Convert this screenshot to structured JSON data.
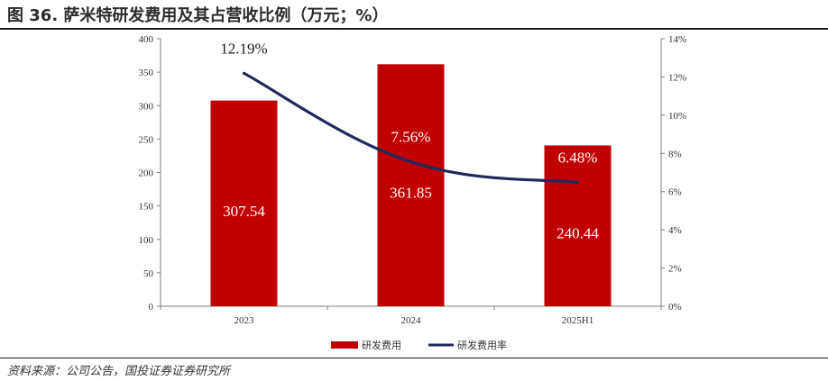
{
  "page": {
    "title": "图 36. 萨米特研发费用及其占营收比例（万元；%）",
    "source": "资料来源：公司公告，国投证券证券研究所"
  },
  "chart_data": {
    "type": "bar",
    "categories": [
      "2023",
      "2024",
      "2025H1"
    ],
    "series": [
      {
        "name": "研发费用",
        "type": "bar",
        "axis": "left",
        "values": [
          307.54,
          361.85,
          240.44
        ],
        "labels": [
          "307.54",
          "361.85",
          "240.44"
        ],
        "color": "#c00000"
      },
      {
        "name": "研发费用率",
        "type": "line",
        "axis": "right",
        "values": [
          12.19,
          7.56,
          6.48
        ],
        "labels": [
          "12.19%",
          "7.56%",
          "6.48%"
        ],
        "color": "#1f2a5c"
      }
    ],
    "ylim": [
      0,
      400
    ],
    "yticks": [
      0,
      50,
      100,
      150,
      200,
      250,
      300,
      350,
      400
    ],
    "y2lim": [
      0,
      14
    ],
    "y2ticks": [
      0,
      2,
      4,
      6,
      8,
      10,
      12,
      14
    ],
    "y2tick_labels": [
      "0%",
      "2%",
      "4%",
      "6%",
      "8%",
      "10%",
      "12%",
      "14%"
    ],
    "grid": false,
    "legend": "bottom"
  }
}
